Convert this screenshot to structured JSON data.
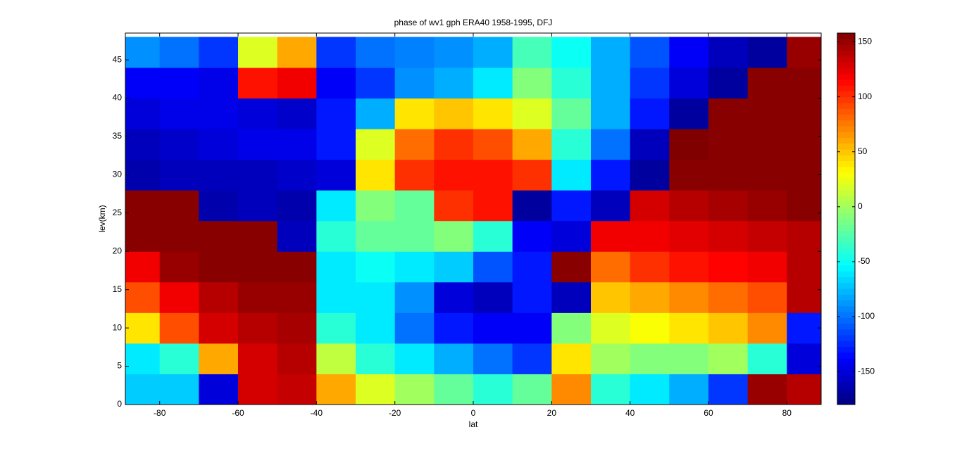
{
  "chart_data": {
    "type": "contour",
    "title": "phase of wv1 gph ERA40 1958-1995, DFJ",
    "x_label": "lat",
    "y_label": "lev(km)",
    "x": [
      -85,
      -75,
      -65,
      -55,
      -45,
      -35,
      -25,
      -15,
      -5,
      5,
      15,
      25,
      35,
      45,
      55,
      65,
      75,
      85
    ],
    "y": [
      2,
      6,
      10,
      14,
      18,
      22,
      26,
      30,
      34,
      38,
      42,
      46
    ],
    "z": [
      [
        -70,
        -70,
        -150,
        130,
        135,
        60,
        20,
        0,
        -20,
        -40,
        -20,
        70,
        -40,
        -60,
        -80,
        -120,
        150,
        140
      ],
      [
        -60,
        -40,
        60,
        130,
        140,
        10,
        -40,
        -60,
        -80,
        -100,
        -120,
        40,
        0,
        -10,
        -10,
        0,
        -40,
        -150
      ],
      [
        40,
        90,
        130,
        140,
        145,
        -40,
        -60,
        -100,
        -130,
        -140,
        -140,
        -10,
        20,
        30,
        40,
        50,
        70,
        -130
      ],
      [
        90,
        120,
        140,
        150,
        150,
        -60,
        -60,
        -90,
        -150,
        -160,
        -130,
        -160,
        50,
        60,
        70,
        80,
        90,
        140
      ],
      [
        120,
        150,
        155,
        155,
        155,
        -60,
        -50,
        -60,
        -70,
        -110,
        -130,
        155,
        80,
        100,
        110,
        115,
        120,
        140
      ],
      [
        155,
        155,
        155,
        155,
        -160,
        -40,
        -20,
        -20,
        -10,
        -40,
        -140,
        -150,
        120,
        120,
        125,
        130,
        135,
        140
      ],
      [
        155,
        155,
        -165,
        -160,
        -165,
        -60,
        -10,
        -20,
        100,
        110,
        -170,
        -130,
        -160,
        130,
        140,
        145,
        150,
        155
      ],
      [
        -165,
        -160,
        -160,
        -160,
        -155,
        -150,
        40,
        100,
        110,
        110,
        100,
        -60,
        -130,
        -170,
        155,
        155,
        155,
        155
      ],
      [
        -160,
        -155,
        -150,
        -145,
        -145,
        -130,
        20,
        80,
        100,
        90,
        60,
        -40,
        -100,
        -160,
        160,
        155,
        155,
        155
      ],
      [
        -150,
        -145,
        -145,
        -150,
        -155,
        -130,
        -80,
        40,
        50,
        40,
        20,
        -20,
        -80,
        -130,
        -170,
        155,
        155,
        155
      ],
      [
        -140,
        -140,
        -145,
        110,
        120,
        -140,
        -120,
        -90,
        -80,
        -60,
        -10,
        -40,
        -80,
        -120,
        -150,
        -170,
        155,
        155
      ],
      [
        -90,
        -100,
        -120,
        20,
        60,
        -120,
        -100,
        -95,
        -90,
        -80,
        -30,
        -50,
        -80,
        -110,
        -140,
        -160,
        -170,
        150
      ]
    ],
    "xlim": [
      -88.75,
      88.75
    ],
    "ylim": [
      0,
      48.5
    ],
    "xticks": [
      -80,
      -60,
      -40,
      -20,
      0,
      20,
      40,
      60,
      80
    ],
    "yticks": [
      0,
      5,
      10,
      15,
      20,
      25,
      30,
      35,
      40,
      45
    ],
    "colormap": "jet",
    "clim": [
      -180,
      158
    ],
    "cticks": [
      -150,
      -100,
      -50,
      0,
      50,
      100,
      150
    ]
  }
}
